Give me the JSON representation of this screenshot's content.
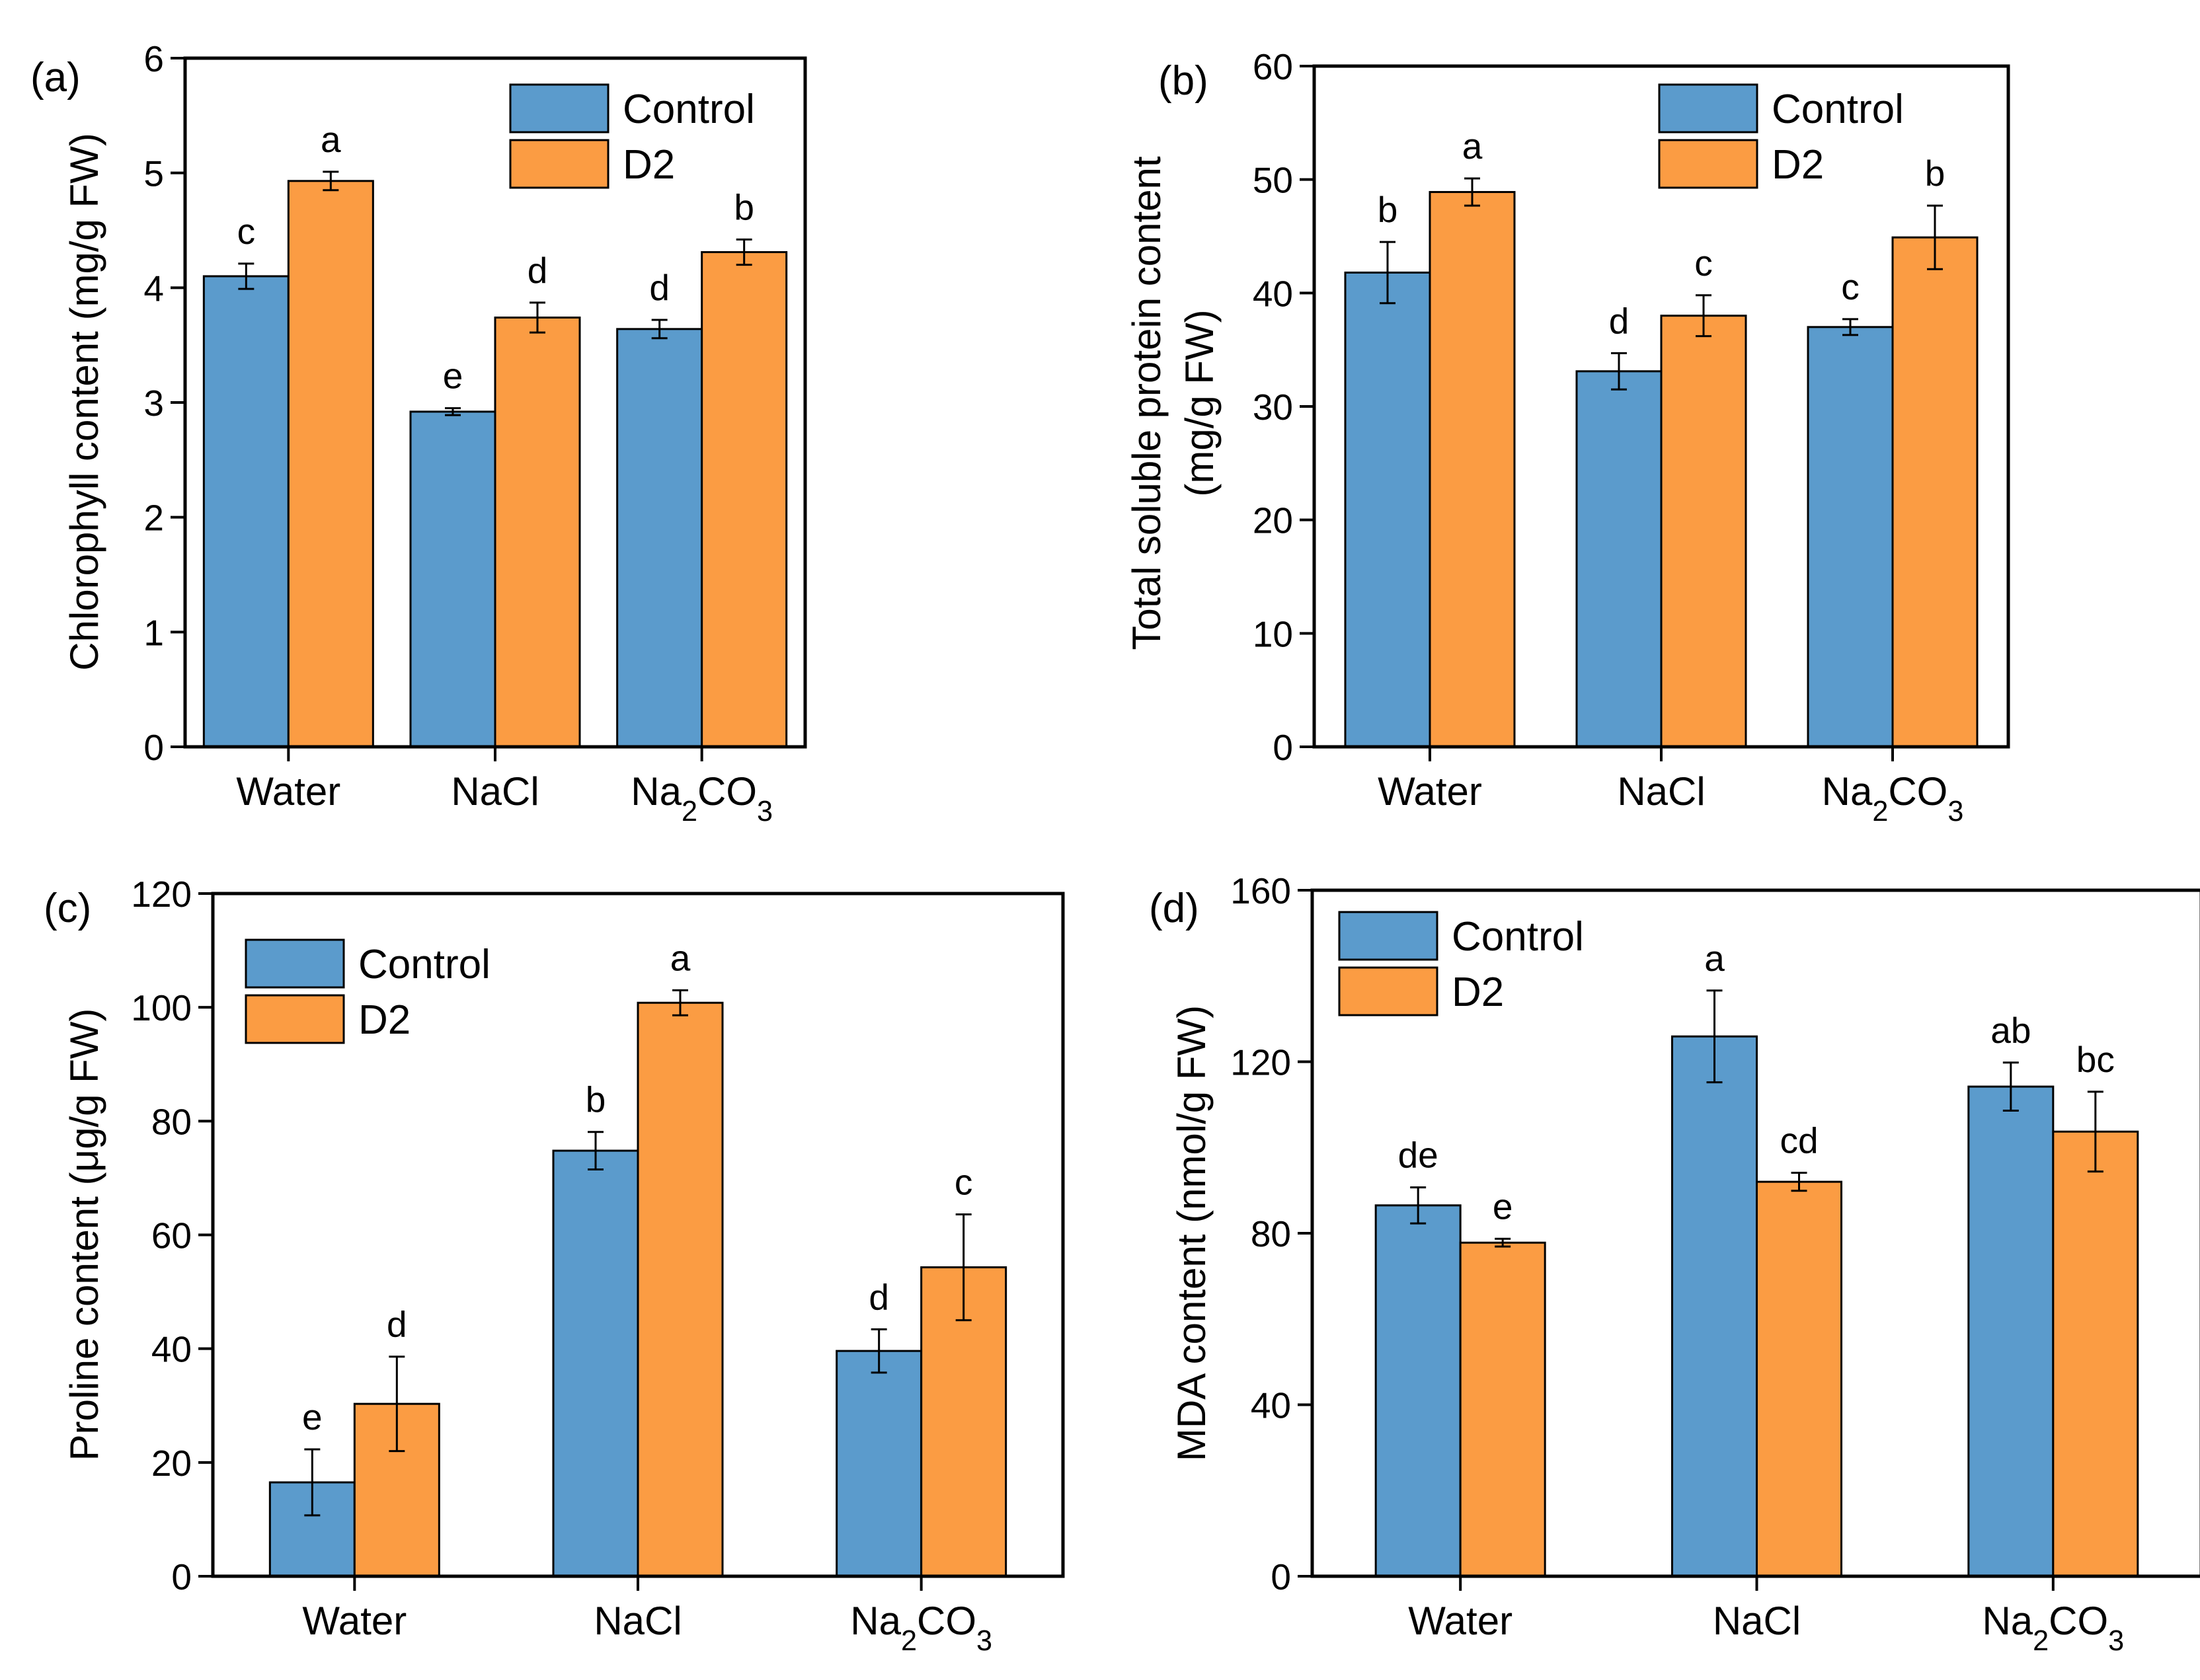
{
  "colors": {
    "control": "#5b9bcc",
    "d2": "#fb9c43"
  },
  "legend_labels": [
    "Control",
    "D2"
  ],
  "chart_data": [
    {
      "panel": "(a)",
      "type": "bar",
      "categories": [
        "Water",
        "NaCl",
        "Na2CO3"
      ],
      "ylabel": "Chlorophyll content (mg/g FW)",
      "ylim": [
        0,
        6
      ],
      "yticks": [
        0,
        1,
        2,
        3,
        4,
        5,
        6
      ],
      "legend_position": "top-center",
      "series": [
        {
          "name": "Control",
          "values": [
            4.1,
            2.92,
            3.64
          ],
          "errors": [
            0.11,
            0.03,
            0.08
          ],
          "letters": [
            "c",
            "e",
            "d"
          ]
        },
        {
          "name": "D2",
          "values": [
            4.93,
            3.74,
            4.31
          ],
          "errors": [
            0.08,
            0.13,
            0.11
          ],
          "letters": [
            "a",
            "d",
            "b"
          ]
        }
      ]
    },
    {
      "panel": "(b)",
      "type": "bar",
      "categories": [
        "Water",
        "NaCl",
        "Na2CO3"
      ],
      "ylabel": "Total soluble protein content",
      "ylabel_line2": "(mg/g FW)",
      "ylim": [
        0,
        60
      ],
      "yticks": [
        0,
        10,
        20,
        30,
        40,
        50,
        60
      ],
      "legend_position": "top-center",
      "series": [
        {
          "name": "Control",
          "values": [
            41.8,
            33.1,
            37.0
          ],
          "errors": [
            2.7,
            1.6,
            0.7
          ],
          "letters": [
            "b",
            "d",
            "c"
          ]
        },
        {
          "name": "D2",
          "values": [
            48.9,
            38.0,
            44.9
          ],
          "errors": [
            1.2,
            1.8,
            2.8
          ],
          "letters": [
            "a",
            "c",
            "b"
          ]
        }
      ]
    },
    {
      "panel": "(c)",
      "type": "bar",
      "categories": [
        "Water",
        "NaCl",
        "Na2CO3"
      ],
      "ylabel": "Proline content (μg/g FW)",
      "ylim": [
        0,
        120
      ],
      "yticks": [
        0,
        20,
        40,
        60,
        80,
        100,
        120
      ],
      "legend_position": "top-left",
      "series": [
        {
          "name": "Control",
          "values": [
            16.5,
            74.8,
            39.6
          ],
          "errors": [
            5.8,
            3.3,
            3.8
          ],
          "letters": [
            "e",
            "b",
            "d"
          ]
        },
        {
          "name": "D2",
          "values": [
            30.3,
            100.8,
            54.3
          ],
          "errors": [
            8.3,
            2.2,
            9.3
          ],
          "letters": [
            "d",
            "a",
            "c"
          ]
        }
      ]
    },
    {
      "panel": "(d)",
      "type": "bar",
      "categories": [
        "Water",
        "NaCl",
        "Na2CO3"
      ],
      "ylabel": "MDA content (nmol/g FW)",
      "ylim": [
        0,
        160
      ],
      "yticks": [
        0,
        40,
        80,
        120,
        160
      ],
      "legend_position": "top-left",
      "series": [
        {
          "name": "Control",
          "values": [
            86.5,
            125.9,
            114.2
          ],
          "errors": [
            4.2,
            10.7,
            5.6
          ],
          "letters": [
            "de",
            "a",
            "ab"
          ]
        },
        {
          "name": "D2",
          "values": [
            77.8,
            92.0,
            103.7
          ],
          "errors": [
            0.9,
            2.1,
            9.3
          ],
          "letters": [
            "e",
            "cd",
            "bc"
          ]
        }
      ]
    }
  ]
}
